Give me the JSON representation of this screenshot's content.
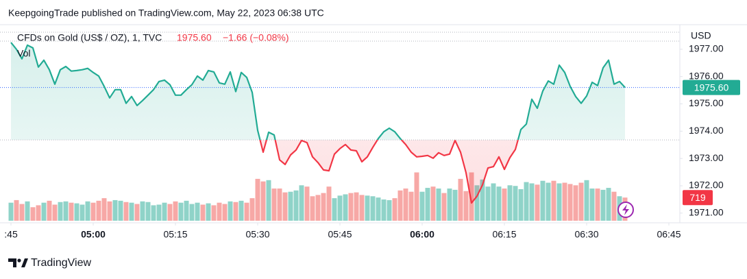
{
  "header": {
    "publisher": "KeepgoingTrade published on TradingView.com, May 22, 2023 06:38 UTC"
  },
  "footer": {
    "brand": "TradingView"
  },
  "chart_data": {
    "type": "line",
    "title": "CFDs on Gold (US$ / OZ), 1, TVC",
    "price_label": "1975.60",
    "change": "−1.66 (−0.08%)",
    "volume_title": "Vol",
    "currency": "USD",
    "x": [
      "04:45",
      "04:46",
      "04:47",
      "04:48",
      "04:49",
      "04:50",
      "04:51",
      "04:52",
      "04:53",
      "04:54",
      "04:55",
      "04:56",
      "04:57",
      "04:58",
      "04:59",
      "05:00",
      "05:01",
      "05:02",
      "05:03",
      "05:04",
      "05:05",
      "05:06",
      "05:07",
      "05:08",
      "05:09",
      "05:10",
      "05:11",
      "05:12",
      "05:13",
      "05:14",
      "05:15",
      "05:16",
      "05:17",
      "05:18",
      "05:19",
      "05:20",
      "05:21",
      "05:22",
      "05:23",
      "05:24",
      "05:25",
      "05:26",
      "05:27",
      "05:28",
      "05:29",
      "05:30",
      "05:31",
      "05:32",
      "05:33",
      "05:34",
      "05:35",
      "05:36",
      "05:37",
      "05:38",
      "05:39",
      "05:40",
      "05:41",
      "05:42",
      "05:43",
      "05:44",
      "05:45",
      "05:46",
      "05:47",
      "05:48",
      "05:49",
      "05:50",
      "05:51",
      "05:52",
      "05:53",
      "05:54",
      "05:55",
      "05:56",
      "05:57",
      "05:58",
      "05:59",
      "06:00",
      "06:01",
      "06:02",
      "06:03",
      "06:04",
      "06:05",
      "06:06",
      "06:07",
      "06:08",
      "06:09",
      "06:10",
      "06:11",
      "06:12",
      "06:13",
      "06:14",
      "06:15",
      "06:16",
      "06:17",
      "06:18",
      "06:19",
      "06:20",
      "06:21",
      "06:22",
      "06:23",
      "06:24",
      "06:25",
      "06:26",
      "06:27",
      "06:28",
      "06:29",
      "06:30",
      "06:31",
      "06:32",
      "06:33",
      "06:34",
      "06:35",
      "06:36",
      "06:37"
    ],
    "series": [
      {
        "name": "Price",
        "color": "#22ab94",
        "color_below": "#f23645",
        "values": [
          1977.25,
          1977.0,
          1976.65,
          1977.15,
          1977.05,
          1976.35,
          1976.6,
          1976.25,
          1975.72,
          1976.25,
          1976.37,
          1976.2,
          1976.22,
          1976.25,
          1976.3,
          1976.15,
          1976.02,
          1975.64,
          1975.22,
          1975.52,
          1975.52,
          1975.02,
          1975.27,
          1974.94,
          1975.12,
          1975.32,
          1975.52,
          1975.82,
          1975.87,
          1975.7,
          1975.32,
          1975.32,
          1975.52,
          1975.7,
          1976.02,
          1975.87,
          1976.22,
          1976.17,
          1975.77,
          1975.72,
          1976.17,
          1975.45,
          1976.15,
          1975.97,
          1975.42,
          1974.03,
          1973.23,
          1973.96,
          1973.86,
          1972.95,
          1972.78,
          1973.13,
          1973.31,
          1973.66,
          1973.58,
          1973.06,
          1972.85,
          1972.58,
          1972.55,
          1973.16,
          1973.36,
          1973.51,
          1973.31,
          1973.28,
          1972.88,
          1973.06,
          1973.41,
          1973.73,
          1973.98,
          1974.11,
          1973.98,
          1973.73,
          1973.51,
          1973.23,
          1973.06,
          1973.08,
          1973.11,
          1973.01,
          1973.21,
          1973.11,
          1973.16,
          1973.66,
          1973.23,
          1972.48,
          1971.37,
          1971.62,
          1972.03,
          1972.65,
          1972.7,
          1973.06,
          1972.6,
          1973.03,
          1973.33,
          1974.06,
          1974.26,
          1975.17,
          1974.84,
          1975.47,
          1975.84,
          1975.72,
          1976.42,
          1976.15,
          1975.64,
          1975.27,
          1975.02,
          1975.29,
          1975.79,
          1975.67,
          1976.32,
          1976.6,
          1975.72,
          1975.82,
          1975.6
        ]
      },
      {
        "name": "Vol",
        "color": "#8fd3c8",
        "color_down": "#f7a8a6",
        "axis": "volume",
        "values": [
          560,
          640,
          520,
          600,
          420,
          480,
          560,
          620,
          500,
          580,
          600,
          560,
          540,
          500,
          600,
          560,
          620,
          700,
          600,
          640,
          620,
          580,
          560,
          520,
          600,
          580,
          480,
          500,
          560,
          520,
          600,
          560,
          620,
          520,
          560,
          500,
          540,
          480,
          560,
          520,
          600,
          580,
          620,
          560,
          700,
          1300,
          1220,
          1260,
          1000,
          1000,
          880,
          900,
          940,
          1100,
          1060,
          760,
          800,
          860,
          1060,
          700,
          780,
          820,
          860,
          880,
          800,
          780,
          760,
          720,
          660,
          640,
          700,
          940,
          1000,
          900,
          1500,
          900,
          1020,
          1060,
          1000,
          860,
          1000,
          960,
          1300,
          920,
          1500,
          1100,
          1280,
          1060,
          1160,
          1060,
          1000,
          1100,
          1080,
          980,
          1200,
          1160,
          1120,
          1240,
          1180,
          1240,
          1160,
          1180,
          1140,
          1100,
          1180,
          1260,
          1000,
          1000,
          960,
          1020,
          900,
          760,
          719
        ]
      }
    ],
    "volume_label": "719",
    "baseline": 1973.68,
    "xlim": [
      "04:43",
      "06:47"
    ],
    "xticks": [
      {
        "value": "04:45",
        "label": ":45"
      },
      "05:00",
      "05:15",
      "05:30",
      "05:45",
      "06:00",
      "06:15",
      "06:30",
      "06:45"
    ],
    "ylim": [
      1970.72,
      1977.8
    ],
    "yticks": [
      {
        "value": 1971,
        "label": "1971.00"
      },
      {
        "value": 1972,
        "label": "1972.00"
      },
      {
        "value": 1973,
        "label": "1973.00"
      },
      {
        "value": 1974,
        "label": "1974.00"
      },
      {
        "value": 1975,
        "label": "1975.00"
      },
      {
        "value": 1976,
        "label": "1976.00"
      },
      {
        "value": 1977,
        "label": "1977.00"
      }
    ],
    "volume_lim": [
      0,
      6000
    ]
  }
}
